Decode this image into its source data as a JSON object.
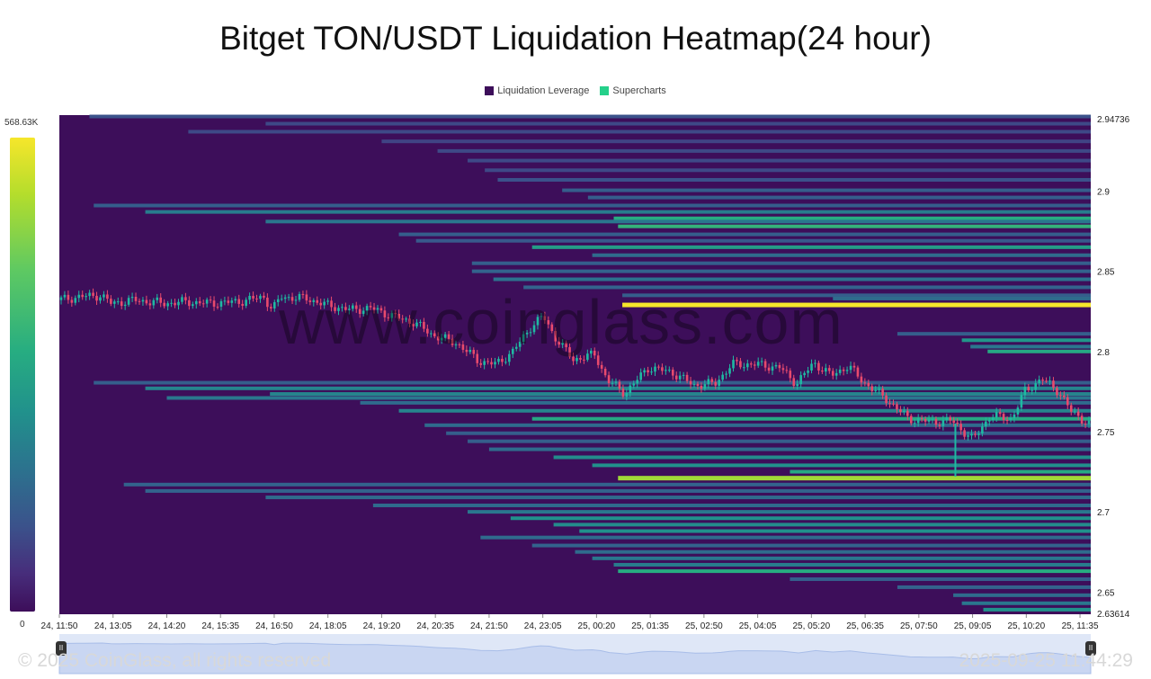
{
  "title": "Bitget TON/USDT Liquidation Heatmap(24 hour)",
  "legend": [
    {
      "label": "Liquidation Leverage",
      "color": "#3d0e5a"
    },
    {
      "label": "Supercharts",
      "color": "#25d08a"
    }
  ],
  "colorbar": {
    "max_label": "568.63K",
    "min_label": "0"
  },
  "watermark": "www.coinglass.com",
  "footer": {
    "copyright": "© 2025 CoinGlass, all rights reserved",
    "timestamp": "2025-09-25 11:44:29"
  },
  "colors": {
    "background": "#3d0e5a",
    "candle_up": "#1fb9a2",
    "candle_down": "#e84a6d"
  },
  "chart_data": {
    "type": "heatmap",
    "title": "Bitget TON/USDT Liquidation Heatmap(24 hour)",
    "ylim": [
      2.63614,
      2.94736
    ],
    "yticks": [
      "2.94736",
      "2.9",
      "2.85",
      "2.8",
      "2.75",
      "2.7",
      "2.65",
      "2.63614"
    ],
    "xticks": [
      "24, 11:50",
      "24, 13:05",
      "24, 14:20",
      "24, 15:35",
      "24, 16:50",
      "24, 18:05",
      "24, 19:20",
      "24, 20:35",
      "24, 21:50",
      "24, 23:05",
      "25, 00:20",
      "25, 01:35",
      "25, 02:50",
      "25, 04:05",
      "25, 05:20",
      "25, 06:35",
      "25, 07:50",
      "25, 09:05",
      "25, 10:20",
      "25, 11:35"
    ],
    "x_hours": [
      0,
      1.25,
      2.5,
      3.75,
      5,
      6.25,
      7.5,
      8.75,
      10,
      11.25,
      12.5,
      13.75,
      15,
      16.25,
      17.5,
      18.75,
      20,
      21.25,
      22.5,
      23.75
    ],
    "x_range_hours": [
      0,
      24
    ],
    "bands": [
      {
        "price": 2.9465,
        "start_h": 0.7,
        "intensity": 0.25
      },
      {
        "price": 2.942,
        "start_h": 4.8,
        "intensity": 0.22
      },
      {
        "price": 2.937,
        "start_h": 3.0,
        "intensity": 0.22
      },
      {
        "price": 2.931,
        "start_h": 7.5,
        "intensity": 0.2
      },
      {
        "price": 2.925,
        "start_h": 8.8,
        "intensity": 0.22
      },
      {
        "price": 2.919,
        "start_h": 9.5,
        "intensity": 0.22
      },
      {
        "price": 2.913,
        "start_h": 9.9,
        "intensity": 0.22
      },
      {
        "price": 2.907,
        "start_h": 10.2,
        "intensity": 0.25
      },
      {
        "price": 2.9005,
        "start_h": 11.7,
        "intensity": 0.3
      },
      {
        "price": 2.896,
        "start_h": 12.3,
        "intensity": 0.3
      },
      {
        "price": 2.891,
        "start_h": 0.8,
        "intensity": 0.3
      },
      {
        "price": 2.887,
        "start_h": 2.0,
        "intensity": 0.42
      },
      {
        "price": 2.883,
        "start_h": 12.9,
        "intensity": 0.62
      },
      {
        "price": 2.881,
        "start_h": 4.8,
        "intensity": 0.4
      },
      {
        "price": 2.878,
        "start_h": 13.0,
        "intensity": 0.65
      },
      {
        "price": 2.873,
        "start_h": 7.9,
        "intensity": 0.3
      },
      {
        "price": 2.869,
        "start_h": 8.3,
        "intensity": 0.28
      },
      {
        "price": 2.865,
        "start_h": 11.0,
        "intensity": 0.55
      },
      {
        "price": 2.86,
        "start_h": 12.4,
        "intensity": 0.35
      },
      {
        "price": 2.855,
        "start_h": 9.6,
        "intensity": 0.3
      },
      {
        "price": 2.85,
        "start_h": 9.6,
        "intensity": 0.32
      },
      {
        "price": 2.845,
        "start_h": 10.1,
        "intensity": 0.38
      },
      {
        "price": 2.84,
        "start_h": 10.8,
        "intensity": 0.32
      },
      {
        "price": 2.835,
        "start_h": 13.1,
        "intensity": 0.3
      },
      {
        "price": 2.829,
        "start_h": 13.1,
        "intensity": 1.0
      },
      {
        "price": 2.833,
        "start_h": 18.0,
        "intensity": 0.35
      },
      {
        "price": 2.811,
        "start_h": 19.5,
        "intensity": 0.3
      },
      {
        "price": 2.807,
        "start_h": 21.0,
        "intensity": 0.52
      },
      {
        "price": 2.803,
        "start_h": 21.2,
        "intensity": 0.4
      },
      {
        "price": 2.8,
        "start_h": 21.6,
        "intensity": 0.6
      },
      {
        "price": 2.7805,
        "start_h": 0.8,
        "intensity": 0.3
      },
      {
        "price": 2.777,
        "start_h": 2.0,
        "intensity": 0.45
      },
      {
        "price": 2.7735,
        "start_h": 4.9,
        "intensity": 0.45
      },
      {
        "price": 2.771,
        "start_h": 2.5,
        "intensity": 0.4
      },
      {
        "price": 2.768,
        "start_h": 7.0,
        "intensity": 0.35
      },
      {
        "price": 2.763,
        "start_h": 7.9,
        "intensity": 0.45
      },
      {
        "price": 2.758,
        "start_h": 11.0,
        "intensity": 0.6
      },
      {
        "price": 2.754,
        "start_h": 8.5,
        "intensity": 0.35
      },
      {
        "price": 2.749,
        "start_h": 9.0,
        "intensity": 0.3
      },
      {
        "price": 2.744,
        "start_h": 9.5,
        "intensity": 0.3
      },
      {
        "price": 2.739,
        "start_h": 10.0,
        "intensity": 0.35
      },
      {
        "price": 2.734,
        "start_h": 11.5,
        "intensity": 0.48
      },
      {
        "price": 2.729,
        "start_h": 12.4,
        "intensity": 0.5
      },
      {
        "price": 2.725,
        "start_h": 17.0,
        "intensity": 0.6
      },
      {
        "price": 2.721,
        "start_h": 13.0,
        "intensity": 0.85
      },
      {
        "price": 2.717,
        "start_h": 1.5,
        "intensity": 0.32
      },
      {
        "price": 2.713,
        "start_h": 2.0,
        "intensity": 0.32
      },
      {
        "price": 2.709,
        "start_h": 4.8,
        "intensity": 0.35
      },
      {
        "price": 2.704,
        "start_h": 7.3,
        "intensity": 0.35
      },
      {
        "price": 2.7,
        "start_h": 9.5,
        "intensity": 0.4
      },
      {
        "price": 2.696,
        "start_h": 10.5,
        "intensity": 0.5
      },
      {
        "price": 2.692,
        "start_h": 11.5,
        "intensity": 0.48
      },
      {
        "price": 2.688,
        "start_h": 12.1,
        "intensity": 0.5
      },
      {
        "price": 2.684,
        "start_h": 9.8,
        "intensity": 0.35
      },
      {
        "price": 2.679,
        "start_h": 11.0,
        "intensity": 0.32
      },
      {
        "price": 2.675,
        "start_h": 12.0,
        "intensity": 0.35
      },
      {
        "price": 2.671,
        "start_h": 12.4,
        "intensity": 0.4
      },
      {
        "price": 2.667,
        "start_h": 12.9,
        "intensity": 0.42
      },
      {
        "price": 2.663,
        "start_h": 13.0,
        "intensity": 0.62
      },
      {
        "price": 2.658,
        "start_h": 17.0,
        "intensity": 0.3
      },
      {
        "price": 2.653,
        "start_h": 19.5,
        "intensity": 0.32
      },
      {
        "price": 2.648,
        "start_h": 20.8,
        "intensity": 0.35
      },
      {
        "price": 2.643,
        "start_h": 21.0,
        "intensity": 0.4
      },
      {
        "price": 2.639,
        "start_h": 21.5,
        "intensity": 0.5
      }
    ],
    "price_path": [
      [
        0,
        2.832
      ],
      [
        0.5,
        2.834
      ],
      [
        1.0,
        2.835
      ],
      [
        1.25,
        2.83
      ],
      [
        1.8,
        2.832
      ],
      [
        2.5,
        2.83
      ],
      [
        3.0,
        2.831
      ],
      [
        3.5,
        2.83
      ],
      [
        4.2,
        2.831
      ],
      [
        4.8,
        2.834
      ],
      [
        5.0,
        2.826
      ],
      [
        5.2,
        2.834
      ],
      [
        5.8,
        2.833
      ],
      [
        6.25,
        2.829
      ],
      [
        6.8,
        2.826
      ],
      [
        7.3,
        2.827
      ],
      [
        7.8,
        2.822
      ],
      [
        8.3,
        2.818
      ],
      [
        8.75,
        2.81
      ],
      [
        9.3,
        2.805
      ],
      [
        9.8,
        2.794
      ],
      [
        10.2,
        2.792
      ],
      [
        10.6,
        2.8
      ],
      [
        11.0,
        2.815
      ],
      [
        11.3,
        2.822
      ],
      [
        11.6,
        2.808
      ],
      [
        12.0,
        2.795
      ],
      [
        12.5,
        2.798
      ],
      [
        12.8,
        2.782
      ],
      [
        13.2,
        2.774
      ],
      [
        13.75,
        2.79
      ],
      [
        14.3,
        2.787
      ],
      [
        14.8,
        2.779
      ],
      [
        15.3,
        2.78
      ],
      [
        15.7,
        2.792
      ],
      [
        16.25,
        2.792
      ],
      [
        16.8,
        2.79
      ],
      [
        17.2,
        2.78
      ],
      [
        17.6,
        2.793
      ],
      [
        18.0,
        2.785
      ],
      [
        18.4,
        2.791
      ],
      [
        18.75,
        2.781
      ],
      [
        19.3,
        2.77
      ],
      [
        19.8,
        2.758
      ],
      [
        20.4,
        2.756
      ],
      [
        20.8,
        2.757
      ],
      [
        21.3,
        2.745
      ],
      [
        21.7,
        2.76
      ],
      [
        22.2,
        2.758
      ],
      [
        22.5,
        2.775
      ],
      [
        22.9,
        2.783
      ],
      [
        23.3,
        2.775
      ],
      [
        23.6,
        2.762
      ],
      [
        24.0,
        2.755
      ]
    ]
  }
}
